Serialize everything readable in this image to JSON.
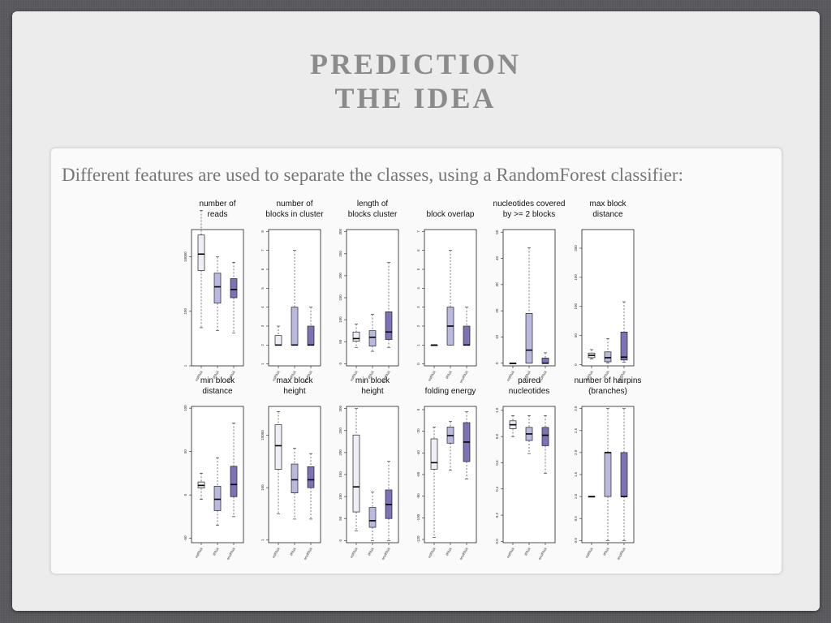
{
  "slide": {
    "title_line1": "PREDICTION",
    "title_line2": "THE IDEA",
    "body": "Different features are used to separate the classes, using a RandomForest classifier:"
  },
  "colors": {
    "mirna": "#eeeef6",
    "trna": "#b9b9e0",
    "snorna": "#7d72b8"
  },
  "chart_data": [
    {
      "type": "boxplot",
      "title": [
        "number of",
        "reads"
      ],
      "scale": "log",
      "ticks": [
        "1",
        "100",
        "10000"
      ],
      "ylim": [
        0,
        5
      ],
      "categories": [
        "miRNA",
        "tRNA",
        "snoRNA"
      ],
      "boxes": [
        [
          1.4,
          3.5,
          4.1,
          4.8,
          5.7
        ],
        [
          1.3,
          2.3,
          2.9,
          3.4,
          4.0
        ],
        [
          1.2,
          2.5,
          2.8,
          3.2,
          3.8
        ]
      ]
    },
    {
      "type": "boxplot",
      "title": [
        "number of",
        "blocks in cluster"
      ],
      "scale": "linear",
      "ticks": [
        "1",
        "2",
        "3",
        "4",
        "5",
        "6",
        "7",
        "8"
      ],
      "ylim": [
        0.9,
        8.1
      ],
      "categories": [
        "miRNA",
        "tRNA",
        "snoRNA"
      ],
      "boxes": [
        [
          2,
          2,
          2,
          2.5,
          3
        ],
        [
          2,
          2,
          2,
          4,
          7
        ],
        [
          2,
          2,
          2,
          3,
          4
        ]
      ]
    },
    {
      "type": "boxplot",
      "title": [
        "length of",
        "blocks cluster"
      ],
      "scale": "linear",
      "ticks": [
        "0",
        "50",
        "100",
        "150",
        "200",
        "250",
        "300"
      ],
      "ylim": [
        -5,
        305
      ],
      "categories": [
        "miRNA",
        "tRNA",
        "snoRNA"
      ],
      "boxes": [
        [
          37,
          51,
          57,
          72,
          90
        ],
        [
          28,
          40,
          60,
          75,
          112
        ],
        [
          37,
          55,
          72,
          118,
          230
        ]
      ]
    },
    {
      "type": "boxplot",
      "title": [
        "block overlap"
      ],
      "scale": "linear",
      "ticks": [
        "0",
        "1",
        "2",
        "3",
        "4",
        "5",
        "6",
        "7"
      ],
      "ylim": [
        -0.1,
        7.1
      ],
      "categories": [
        "miRNA",
        "tRNA",
        "snoRNA"
      ],
      "boxes": [
        [
          1,
          1,
          1,
          1,
          1
        ],
        [
          1,
          1,
          2,
          3,
          6
        ],
        [
          1,
          1,
          1,
          2,
          3
        ]
      ]
    },
    {
      "type": "boxplot",
      "title": [
        "nucleotides covered",
        "by >= 2 blocks"
      ],
      "scale": "linear",
      "ticks": [
        "0",
        "10",
        "20",
        "30",
        "40",
        "50"
      ],
      "ylim": [
        -1,
        51
      ],
      "categories": [
        "miRNA",
        "tRNA",
        "snoRNA"
      ],
      "boxes": [
        [
          0,
          0,
          0,
          0,
          0
        ],
        [
          0,
          0,
          5,
          19,
          44
        ],
        [
          0,
          0,
          0,
          2,
          4
        ]
      ]
    },
    {
      "type": "boxplot",
      "title": [
        "max block",
        "distance"
      ],
      "scale": "linear",
      "ticks": [
        "0",
        "50",
        "100",
        "150",
        "200"
      ],
      "ylim": [
        -2,
        232
      ],
      "categories": [
        "miRNA",
        "tRNA",
        "snoRNA"
      ],
      "boxes": [
        [
          10,
          12,
          16,
          20,
          26
        ],
        [
          3,
          5,
          12,
          22,
          45
        ],
        [
          4,
          8,
          13,
          56,
          108
        ]
      ]
    },
    {
      "type": "boxplot",
      "title": [
        "min block",
        "distance"
      ],
      "scale": "linear",
      "ticks": [
        "-50",
        "0",
        "50",
        "100"
      ],
      "ylim": [
        -55,
        102
      ],
      "categories": [
        "miRNA",
        "tRNA",
        "snoRNA"
      ],
      "boxes": [
        [
          -5,
          8,
          11,
          15,
          25
        ],
        [
          -35,
          -18,
          -5,
          10,
          43
        ],
        [
          -25,
          -2,
          12,
          33,
          83
        ]
      ]
    },
    {
      "type": "boxplot",
      "title": [
        "max block",
        "height"
      ],
      "scale": "log",
      "ticks": [
        "1",
        "100",
        "10000"
      ],
      "ylim": [
        -0.1,
        5.1
      ],
      "categories": [
        "miRNA",
        "tRNA",
        "snoRNA"
      ],
      "boxes": [
        [
          1.0,
          2.7,
          3.6,
          4.4,
          4.9
        ],
        [
          0.8,
          1.8,
          2.3,
          2.9,
          3.5
        ],
        [
          0.8,
          2.0,
          2.3,
          2.8,
          3.3
        ]
      ]
    },
    {
      "type": "boxplot",
      "title": [
        "min block",
        "height"
      ],
      "scale": "linear",
      "ticks": [
        "0",
        "50",
        "100",
        "150",
        "200",
        "250",
        "300"
      ],
      "ylim": [
        -5,
        305
      ],
      "categories": [
        "miRNA",
        "tRNA",
        "snoRNA"
      ],
      "boxes": [
        [
          22,
          65,
          122,
          240,
          300
        ],
        [
          0,
          30,
          45,
          75,
          110
        ],
        [
          0,
          50,
          82,
          115,
          180
        ]
      ]
    },
    {
      "type": "boxplot",
      "title": [
        "folding energy"
      ],
      "scale": "linear",
      "ticks": [
        "-120",
        "-100",
        "-80",
        "-60",
        "-40",
        "-20",
        "0"
      ],
      "ylim": [
        -123,
        3
      ],
      "categories": [
        "miRNA",
        "tRNA",
        "snoRNA"
      ],
      "boxes": [
        [
          -118,
          -55,
          -49,
          -27,
          -16
        ],
        [
          -56,
          -31,
          -24,
          -16,
          -11
        ],
        [
          -64,
          -48,
          -30,
          -12,
          -2
        ]
      ]
    },
    {
      "type": "boxplot",
      "title": [
        "paired",
        "nucleotides"
      ],
      "scale": "linear",
      "ticks": [
        "0.0",
        "0.2",
        "0.4",
        "0.6",
        "0.8",
        "1.0"
      ],
      "ylim": [
        -0.01,
        1.03
      ],
      "categories": [
        "miRNA",
        "tRNA",
        "snoRNA"
      ],
      "boxes": [
        [
          0.8,
          0.86,
          0.89,
          0.92,
          0.96
        ],
        [
          0.67,
          0.77,
          0.82,
          0.87,
          0.96
        ],
        [
          0.52,
          0.73,
          0.81,
          0.87,
          0.96
        ]
      ]
    },
    {
      "type": "boxplot",
      "title": [
        "number of hairpins",
        "(branches)"
      ],
      "scale": "linear",
      "ticks": [
        "0.0",
        "0.5",
        "1.0",
        "1.5",
        "2.0",
        "2.5",
        "3.0"
      ],
      "ylim": [
        -0.05,
        3.05
      ],
      "categories": [
        "miRNA",
        "tRNA",
        "snoRNA"
      ],
      "boxes": [
        [
          1,
          1,
          1,
          1,
          1
        ],
        [
          0,
          1,
          2,
          2,
          3
        ],
        [
          0,
          1,
          1,
          2,
          3
        ]
      ]
    }
  ]
}
